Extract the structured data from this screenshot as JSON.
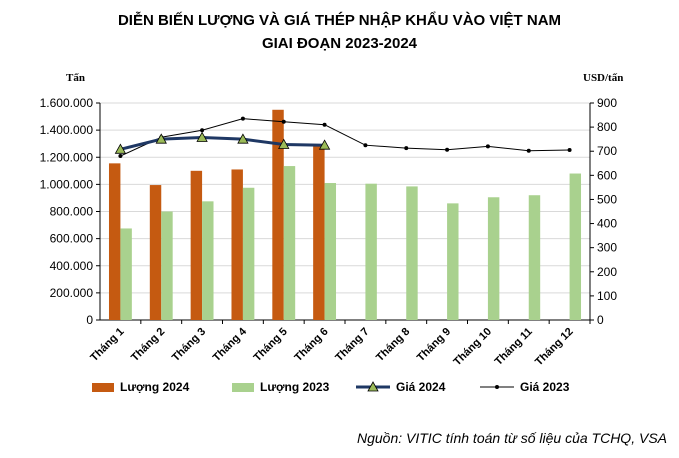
{
  "chart_data": {
    "type": "bar",
    "title": "DIỄN BIẾN LƯỢNG VÀ GIÁ THÉP NHẬP KHẨU VÀO VIỆT NAM",
    "subtitle": "GIAI ĐOẠN 2023-2024",
    "y_left_label": "Tấn",
    "y_right_label": "USD/tấn",
    "y_left_lim": [
      0,
      1600000
    ],
    "y_right_lim": [
      0,
      900
    ],
    "y_left_ticks": [
      "0",
      "200.000",
      "400.000",
      "600.000",
      "800.000",
      "1.000.000",
      "1.200.000",
      "1.400.000",
      "1.600.000"
    ],
    "y_right_ticks": [
      "0",
      "100",
      "200",
      "300",
      "400",
      "500",
      "600",
      "700",
      "800",
      "900"
    ],
    "categories": [
      "Tháng 1",
      "Tháng 2",
      "Tháng 3",
      "Tháng 4",
      "Tháng 5",
      "Tháng 6",
      "Tháng 7",
      "Tháng 8",
      "Tháng 9",
      "Tháng 10",
      "Tháng 11",
      "Tháng 12"
    ],
    "grid": true,
    "legend_position": "bottom",
    "series": [
      {
        "name": "Lượng 2024",
        "kind": "bar",
        "axis": "left",
        "color": "#c55a11",
        "values": [
          1155000,
          995000,
          1100000,
          1110000,
          1550000,
          1280000,
          null,
          null,
          null,
          null,
          null,
          null
        ]
      },
      {
        "name": "Lượng 2023",
        "kind": "bar",
        "axis": "left",
        "color": "#a9d18e",
        "values": [
          675000,
          800000,
          875000,
          975000,
          1135000,
          1010000,
          1005000,
          985000,
          860000,
          905000,
          920000,
          1080000
        ]
      },
      {
        "name": "Giá 2024",
        "kind": "line",
        "axis": "right",
        "color": "#1f3864",
        "values": [
          708,
          750,
          757,
          750,
          728,
          725,
          null,
          null,
          null,
          null,
          null,
          null
        ]
      },
      {
        "name": "Giá 2023",
        "kind": "line",
        "axis": "right",
        "color": "#000000",
        "values": [
          680,
          758,
          787,
          835,
          822,
          810,
          725,
          713,
          706,
          720,
          702,
          705
        ]
      }
    ]
  },
  "source": "Nguồn: VITIC tính toán từ số liệu của TCHQ, VSA"
}
